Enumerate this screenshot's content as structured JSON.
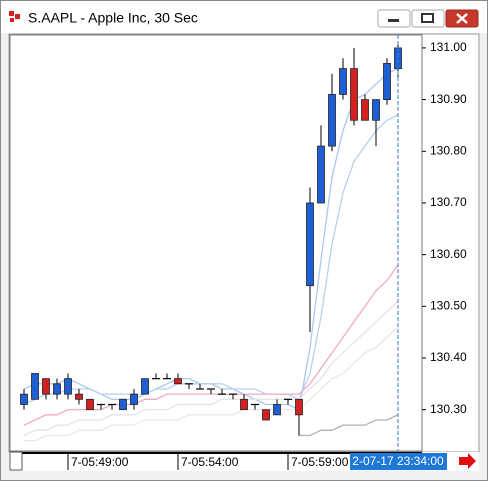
{
  "chart_data": {
    "type": "candlestick",
    "title": "S.AAPL - Apple Inc, 30 Sec",
    "categories": [
      null,
      null,
      null,
      null,
      "7-05:49:00",
      null,
      null,
      null,
      null,
      null,
      null,
      null,
      null,
      null,
      "7-05:54:00",
      null,
      null,
      null,
      null,
      null,
      null,
      null,
      null,
      null,
      "7-05:59:00",
      null,
      null,
      null,
      null,
      null,
      null,
      null,
      null,
      null,
      null
    ],
    "cursor_label": "2-07-17 23:34:00",
    "open": [
      130.31,
      130.32,
      130.36,
      130.33,
      130.33,
      130.33,
      130.32,
      130.31,
      130.31,
      130.3,
      130.31,
      130.33,
      130.36,
      130.36,
      130.36,
      130.35,
      130.34,
      130.34,
      130.33,
      130.33,
      130.32,
      130.31,
      130.3,
      130.29,
      130.32,
      130.32,
      130.54,
      130.7,
      130.81,
      130.91,
      130.96,
      130.9,
      130.86,
      130.9,
      130.96
    ],
    "high": [
      130.34,
      130.37,
      130.36,
      130.36,
      130.37,
      130.34,
      130.32,
      130.31,
      130.31,
      130.32,
      130.34,
      130.36,
      130.37,
      130.37,
      130.37,
      130.35,
      130.35,
      130.34,
      130.34,
      130.33,
      130.33,
      130.31,
      130.3,
      130.32,
      130.32,
      130.32,
      130.73,
      130.85,
      130.95,
      130.98,
      131.0,
      130.91,
      130.9,
      130.98,
      131.01
    ],
    "low": [
      130.3,
      130.32,
      130.32,
      130.32,
      130.32,
      130.31,
      130.3,
      130.3,
      130.3,
      130.3,
      130.3,
      130.33,
      130.36,
      130.36,
      130.35,
      130.34,
      130.34,
      130.33,
      130.33,
      130.32,
      130.3,
      130.3,
      130.28,
      130.29,
      130.31,
      130.25,
      130.45,
      130.7,
      130.8,
      130.9,
      130.85,
      130.86,
      130.81,
      130.89,
      130.94
    ],
    "close": [
      130.33,
      130.37,
      130.33,
      130.35,
      130.36,
      130.32,
      130.3,
      130.31,
      130.31,
      130.32,
      130.33,
      130.36,
      130.36,
      130.36,
      130.35,
      130.35,
      130.34,
      130.34,
      130.33,
      130.33,
      130.3,
      130.31,
      130.28,
      130.31,
      130.32,
      130.29,
      130.7,
      130.81,
      130.91,
      130.96,
      130.86,
      130.86,
      130.9,
      130.97,
      131.0
    ],
    "up_color": "#1e5fd6",
    "down_color": "#d42020",
    "series": [
      {
        "color": "#a9c8ec",
        "values": [
          130.34,
          130.35,
          130.35,
          130.35,
          130.36,
          130.35,
          130.34,
          130.33,
          130.32,
          130.32,
          130.32,
          130.33,
          130.34,
          130.35,
          130.36,
          130.36,
          130.35,
          130.35,
          130.34,
          130.34,
          130.33,
          130.32,
          130.31,
          130.31,
          130.31,
          130.3,
          130.42,
          130.59,
          130.75,
          130.84,
          130.9,
          130.91,
          130.93,
          130.95,
          130.96
        ]
      },
      {
        "color": "#b6d2ee",
        "values": [
          130.31,
          130.32,
          130.33,
          130.33,
          130.34,
          130.34,
          130.34,
          130.33,
          130.33,
          130.33,
          130.33,
          130.33,
          130.34,
          130.34,
          130.35,
          130.35,
          130.35,
          130.35,
          130.35,
          130.34,
          130.34,
          130.34,
          130.33,
          130.33,
          130.33,
          130.32,
          130.37,
          130.48,
          130.62,
          130.72,
          130.78,
          130.81,
          130.84,
          130.86,
          130.87
        ]
      },
      {
        "color": "#f0a8c8",
        "values": [
          130.27,
          130.28,
          130.29,
          130.29,
          130.3,
          130.3,
          130.3,
          130.3,
          130.31,
          130.31,
          130.31,
          130.32,
          130.32,
          130.33,
          130.33,
          130.33,
          130.33,
          130.33,
          130.33,
          130.33,
          130.33,
          130.33,
          130.33,
          130.33,
          130.33,
          130.33,
          130.35,
          130.38,
          130.41,
          130.44,
          130.47,
          130.5,
          130.53,
          130.55,
          130.58
        ]
      },
      {
        "color": "#e4e4e4",
        "values": [
          130.25,
          130.26,
          130.26,
          130.27,
          130.27,
          130.28,
          130.28,
          130.28,
          130.29,
          130.29,
          130.29,
          130.3,
          130.3,
          130.3,
          130.31,
          130.31,
          130.31,
          130.31,
          130.32,
          130.32,
          130.32,
          130.32,
          130.32,
          130.32,
          130.32,
          130.32,
          130.34,
          130.36,
          130.39,
          130.41,
          130.43,
          130.45,
          130.47,
          130.49,
          130.51
        ]
      },
      {
        "color": "#e8e8e8",
        "values": [
          130.24,
          130.24,
          130.25,
          130.25,
          130.25,
          130.26,
          130.26,
          130.26,
          130.27,
          130.27,
          130.27,
          130.28,
          130.28,
          130.28,
          130.28,
          130.29,
          130.29,
          130.29,
          130.29,
          130.29,
          130.3,
          130.3,
          130.3,
          130.3,
          130.3,
          130.3,
          130.32,
          130.34,
          130.36,
          130.37,
          130.39,
          130.41,
          130.42,
          130.44,
          130.46
        ]
      },
      {
        "color": "#b0b0b0",
        "values": [
          null,
          null,
          null,
          null,
          null,
          null,
          null,
          null,
          null,
          null,
          null,
          null,
          null,
          null,
          null,
          null,
          null,
          null,
          null,
          null,
          null,
          null,
          null,
          null,
          null,
          130.25,
          130.25,
          130.26,
          130.26,
          130.27,
          130.27,
          130.27,
          130.28,
          130.28,
          130.29
        ]
      }
    ],
    "ylim": [
      130.22,
      131.025
    ],
    "yticks": [
      {
        "value": 130.3,
        "label": "130.30"
      },
      {
        "value": 130.4,
        "label": "130.40"
      },
      {
        "value": 130.5,
        "label": "130.50"
      },
      {
        "value": 130.6,
        "label": "130.60"
      },
      {
        "value": 130.7,
        "label": "130.70"
      },
      {
        "value": 130.8,
        "label": "130.80"
      },
      {
        "value": 130.9,
        "label": "130.90"
      },
      {
        "value": 131.0,
        "label": "131.00"
      }
    ]
  }
}
